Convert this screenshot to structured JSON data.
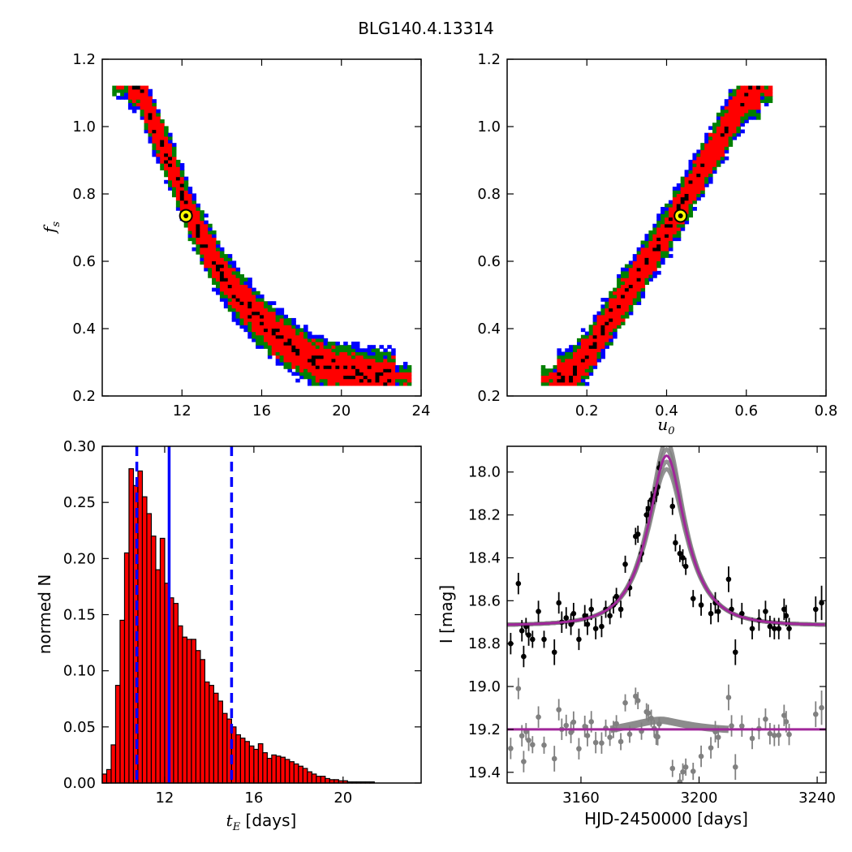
{
  "title": "BLG140.4.13314",
  "colors": {
    "blue": "#0000ff",
    "green": "#008000",
    "red": "#ff0000",
    "black": "#000000",
    "yellow": "#ffff00",
    "magenta": "#a0279a",
    "gray": "#808080"
  },
  "chart_data": [
    {
      "type": "heatmap",
      "panel": "top-left",
      "xlabel": "",
      "ylabel": "f_s",
      "ylabel_main": "f",
      "ylabel_sub": "s",
      "xlim": [
        8,
        24
      ],
      "ylim": [
        0.2,
        1.2
      ],
      "xticks": [
        "12",
        "16",
        "20",
        "24"
      ],
      "xtick_values": [
        12,
        16,
        20,
        24
      ],
      "yticks": [
        "0.2",
        "0.4",
        "0.6",
        "0.8",
        "1.0",
        "1.2"
      ],
      "ytick_values": [
        0.2,
        0.4,
        0.6,
        0.8,
        1.0,
        1.2
      ],
      "levels": [
        "blue",
        "green",
        "red",
        "black"
      ],
      "ridge_x": [
        9.8,
        10.0,
        10.5,
        11.0,
        11.5,
        12.0,
        12.5,
        13.0,
        13.5,
        14.0,
        14.5,
        15.0,
        15.5,
        16.0,
        16.5,
        17.0,
        17.5,
        18.0,
        18.5,
        19.0,
        19.5,
        20.0,
        21.0,
        22.0
      ],
      "ridge_y": [
        1.12,
        1.08,
        1.0,
        0.93,
        0.86,
        0.78,
        0.71,
        0.65,
        0.6,
        0.55,
        0.51,
        0.47,
        0.44,
        0.41,
        0.38,
        0.36,
        0.34,
        0.32,
        0.3,
        0.29,
        0.28,
        0.27,
        0.26,
        0.25
      ],
      "best_fit": {
        "x": 12.2,
        "y": 0.735
      }
    },
    {
      "type": "heatmap",
      "panel": "top-right",
      "xlabel": "u_0",
      "xlabel_main": "u",
      "xlabel_sub": "0",
      "ylabel": "",
      "xlim": [
        0,
        0.8
      ],
      "ylim": [
        0.2,
        1.2
      ],
      "xticks": [
        "0.2",
        "0.4",
        "0.6",
        "0.8"
      ],
      "xtick_values": [
        0.2,
        0.4,
        0.6,
        0.8
      ],
      "yticks": [
        "0.2",
        "0.4",
        "0.6",
        "0.8",
        "1.0",
        "1.2"
      ],
      "ytick_values": [
        0.2,
        0.4,
        0.6,
        0.8,
        1.0,
        1.2
      ],
      "levels": [
        "blue",
        "green",
        "red",
        "black"
      ],
      "ridge_x": [
        0.15,
        0.2,
        0.25,
        0.3,
        0.35,
        0.4,
        0.45,
        0.5,
        0.55,
        0.6
      ],
      "ridge_y": [
        0.25,
        0.32,
        0.42,
        0.51,
        0.6,
        0.69,
        0.8,
        0.9,
        1.0,
        1.1
      ],
      "best_fit": {
        "x": 0.435,
        "y": 0.735
      }
    },
    {
      "type": "bar",
      "panel": "bottom-left",
      "xlabel_main": "t",
      "xlabel_sub": "E",
      "xlabel_rest": " [days]",
      "ylabel": "normed N",
      "xlim": [
        9.2,
        23.5
      ],
      "ylim": [
        0,
        0.3
      ],
      "bin_width": 0.2,
      "bin_start": 9.2,
      "xticks": [
        "12",
        "16",
        "20"
      ],
      "xtick_values": [
        12,
        16,
        20
      ],
      "yticks": [
        "0.00",
        "0.05",
        "0.10",
        "0.15",
        "0.20",
        "0.25",
        "0.30"
      ],
      "ytick_values": [
        0,
        0.05,
        0.1,
        0.15,
        0.2,
        0.25,
        0.3
      ],
      "values": [
        0.008,
        0.012,
        0.034,
        0.087,
        0.145,
        0.205,
        0.28,
        0.265,
        0.278,
        0.255,
        0.24,
        0.22,
        0.19,
        0.218,
        0.178,
        0.165,
        0.16,
        0.14,
        0.13,
        0.128,
        0.128,
        0.118,
        0.11,
        0.09,
        0.087,
        0.08,
        0.073,
        0.062,
        0.057,
        0.05,
        0.043,
        0.04,
        0.037,
        0.033,
        0.03,
        0.035,
        0.027,
        0.022,
        0.025,
        0.024,
        0.023,
        0.021,
        0.019,
        0.017,
        0.015,
        0.013,
        0.01,
        0.008,
        0.006,
        0.006,
        0.004,
        0.003,
        0.003,
        0.002,
        0.002,
        0.001,
        0.001,
        0.001,
        0.001,
        0.001,
        0.001
      ],
      "median": 12.2,
      "lower": 10.75,
      "upper": 15.0
    },
    {
      "type": "scatter",
      "panel": "bottom-right",
      "xlabel": "HJD-2450000 [days]",
      "ylabel": "I [mag]",
      "xlim": [
        3135,
        3243
      ],
      "ylim": [
        19.45,
        17.88
      ],
      "xticks": [
        "3160",
        "3200",
        "3240"
      ],
      "xtick_values": [
        3160,
        3200,
        3240
      ],
      "yticks": [
        "18.0",
        "18.2",
        "18.4",
        "18.6",
        "18.8",
        "19.0",
        "19.2",
        "19.4"
      ],
      "ytick_values": [
        18.0,
        18.2,
        18.4,
        18.6,
        18.8,
        19.0,
        19.2,
        19.4
      ],
      "model": {
        "t0": 3189.0,
        "tE": 12.2,
        "u0": 0.435,
        "baseline_mag": 18.715,
        "residual_baseline": 19.2
      },
      "data_points": [
        [
          3136.2,
          18.8,
          0.05
        ],
        [
          3138.8,
          18.52,
          0.05
        ],
        [
          3140.0,
          18.74,
          0.05
        ],
        [
          3140.6,
          18.86,
          0.05
        ],
        [
          3141.4,
          18.72,
          0.04
        ],
        [
          3142.3,
          18.76,
          0.05
        ],
        [
          3143.6,
          18.78,
          0.04
        ],
        [
          3145.6,
          18.65,
          0.05
        ],
        [
          3147.5,
          18.78,
          0.04
        ],
        [
          3151.0,
          18.84,
          0.06
        ],
        [
          3152.5,
          18.61,
          0.05
        ],
        [
          3153.5,
          18.7,
          0.05
        ],
        [
          3155.0,
          18.68,
          0.05
        ],
        [
          3156.6,
          18.71,
          0.05
        ],
        [
          3157.5,
          18.66,
          0.05
        ],
        [
          3159.3,
          18.78,
          0.05
        ],
        [
          3161.3,
          18.67,
          0.05
        ],
        [
          3162.2,
          18.71,
          0.05
        ],
        [
          3163.5,
          18.64,
          0.05
        ],
        [
          3165.0,
          18.73,
          0.05
        ],
        [
          3167.0,
          18.72,
          0.05
        ],
        [
          3168.4,
          18.64,
          0.04
        ],
        [
          3169.8,
          18.67,
          0.04
        ],
        [
          3171.0,
          18.62,
          0.04
        ],
        [
          3172.0,
          18.58,
          0.04
        ],
        [
          3173.5,
          18.64,
          0.04
        ],
        [
          3175.0,
          18.43,
          0.04
        ],
        [
          3176.5,
          18.54,
          0.04
        ],
        [
          3178.5,
          18.3,
          0.04
        ],
        [
          3179.3,
          18.29,
          0.04
        ],
        [
          3180.5,
          18.38,
          0.04
        ],
        [
          3182.2,
          18.2,
          0.04
        ],
        [
          3182.8,
          18.17,
          0.04
        ],
        [
          3183.8,
          18.13,
          0.04
        ],
        [
          3184.8,
          18.11,
          0.04
        ],
        [
          3185.5,
          18.1,
          0.04
        ],
        [
          3186.0,
          18.07,
          0.04
        ],
        [
          3186.5,
          17.98,
          0.03
        ],
        [
          3191.0,
          18.16,
          0.04
        ],
        [
          3192.0,
          18.33,
          0.04
        ],
        [
          3193.5,
          18.38,
          0.04
        ],
        [
          3194.5,
          18.4,
          0.04
        ],
        [
          3195.5,
          18.44,
          0.04
        ],
        [
          3198.0,
          18.59,
          0.04
        ],
        [
          3200.7,
          18.62,
          0.05
        ],
        [
          3204.0,
          18.66,
          0.05
        ],
        [
          3205.5,
          18.61,
          0.05
        ],
        [
          3206.5,
          18.65,
          0.05
        ],
        [
          3210.0,
          18.5,
          0.06
        ],
        [
          3211.0,
          18.64,
          0.05
        ],
        [
          3212.3,
          18.84,
          0.06
        ],
        [
          3214.5,
          18.66,
          0.05
        ],
        [
          3218.0,
          18.73,
          0.05
        ],
        [
          3220.3,
          18.69,
          0.05
        ],
        [
          3222.5,
          18.65,
          0.05
        ],
        [
          3224.0,
          18.72,
          0.05
        ],
        [
          3225.5,
          18.73,
          0.05
        ],
        [
          3227.0,
          18.73,
          0.05
        ],
        [
          3228.8,
          18.64,
          0.05
        ],
        [
          3229.5,
          18.67,
          0.05
        ],
        [
          3230.5,
          18.73,
          0.05
        ],
        [
          3239.5,
          18.64,
          0.06
        ],
        [
          3241.5,
          18.61,
          0.08
        ]
      ]
    }
  ]
}
